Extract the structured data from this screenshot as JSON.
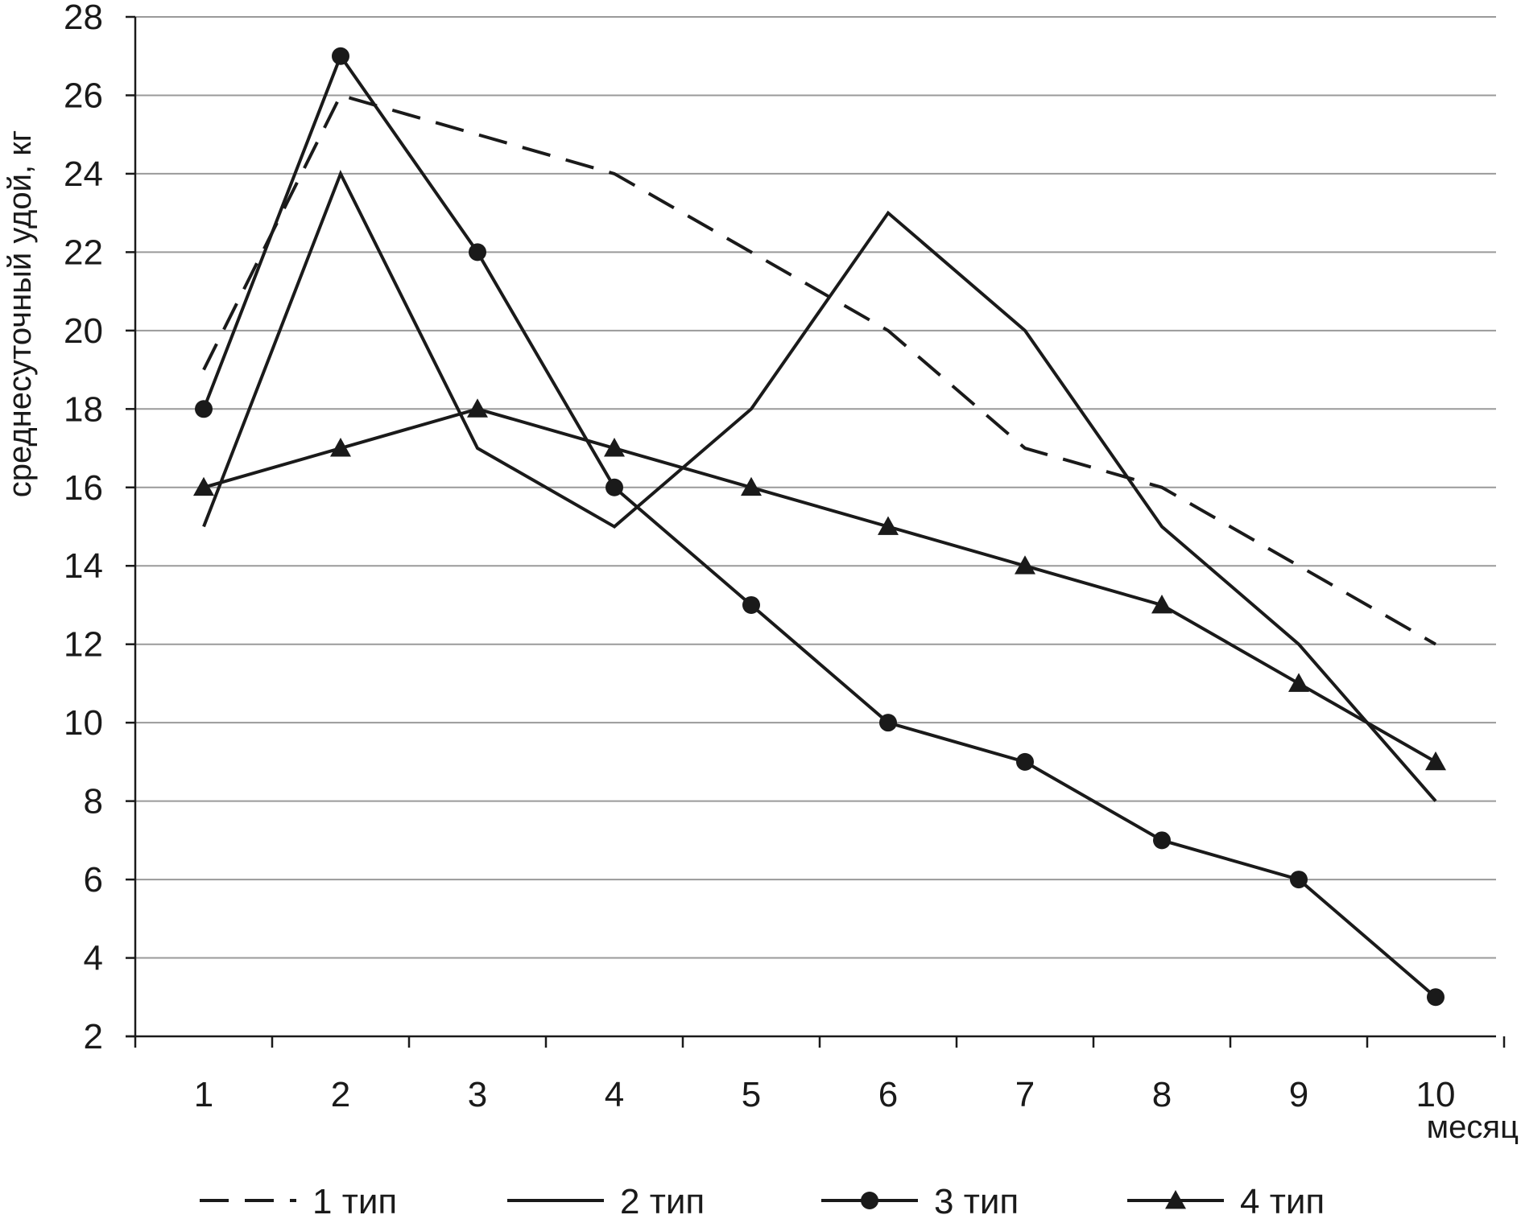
{
  "chart_data": {
    "type": "line",
    "title": "",
    "xlabel": "месяц",
    "ylabel": "среднесуточный удой, кг",
    "categories": [
      "1",
      "2",
      "3",
      "4",
      "5",
      "6",
      "7",
      "8",
      "9",
      "10"
    ],
    "ylim": [
      2,
      28
    ],
    "yticks": [
      2,
      4,
      6,
      8,
      10,
      12,
      14,
      16,
      18,
      20,
      22,
      24,
      26,
      28
    ],
    "grid": true,
    "legend_position": "bottom",
    "series": [
      {
        "name": "1 тип",
        "style": "dashed",
        "marker": "none",
        "color": "#1a1a1a",
        "values": [
          19,
          26,
          25,
          24,
          22,
          20,
          17,
          16,
          14,
          12
        ]
      },
      {
        "name": "2 тип",
        "style": "solid",
        "marker": "none",
        "color": "#1a1a1a",
        "values": [
          15,
          24,
          17,
          15,
          18,
          23,
          20,
          15,
          12,
          8
        ]
      },
      {
        "name": "3 тип",
        "style": "solid",
        "marker": "circle",
        "color": "#1a1a1a",
        "values": [
          18,
          27,
          22,
          16,
          13,
          10,
          9,
          7,
          6,
          3
        ]
      },
      {
        "name": "4 тип",
        "style": "solid",
        "marker": "triangle",
        "color": "#1a1a1a",
        "values": [
          16,
          17,
          18,
          17,
          16,
          15,
          14,
          13,
          11,
          9
        ]
      }
    ],
    "gridline_color": "#9a9a9a"
  }
}
